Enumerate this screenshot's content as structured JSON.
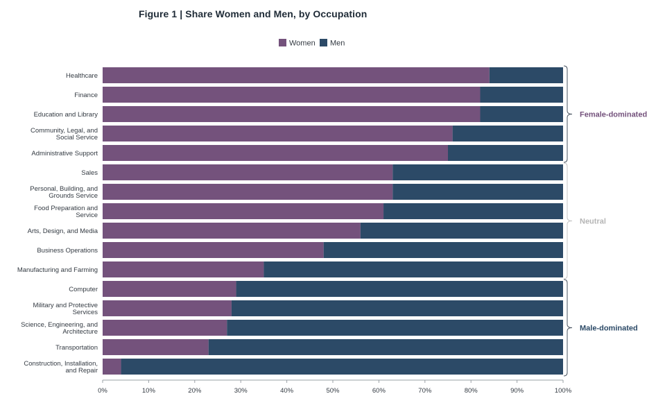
{
  "chart_data": {
    "type": "bar",
    "orientation": "horizontal",
    "stacked": true,
    "title": "Figure 1 | Share Women and Men, by Occupation",
    "categories": [
      "Healthcare",
      "Finance",
      "Education and Library",
      "Community, Legal, and|Social Service",
      "Administrative Support",
      "Sales",
      "Personal, Building, and|Grounds Service",
      "Food Preparation and|Service",
      "Arts, Design, and Media",
      "Business Operations",
      "Manufacturing and Farming",
      "Computer",
      "Military and Protective|Services",
      "Science, Engineering, and|Architecture",
      "Transportation",
      "Construction, Installation,|and Repair"
    ],
    "series": [
      {
        "name": "Women",
        "color": "#74527c",
        "values": [
          84,
          82,
          82,
          76,
          75,
          63,
          63,
          61,
          56,
          48,
          35,
          29,
          28,
          27,
          23,
          4
        ]
      },
      {
        "name": "Men",
        "color": "#2c4a67",
        "values": [
          16,
          18,
          18,
          24,
          25,
          37,
          37,
          39,
          44,
          52,
          65,
          71,
          72,
          73,
          77,
          96
        ]
      }
    ],
    "xlim": [
      0,
      100
    ],
    "xticks": [
      "0%",
      "10%",
      "20%",
      "30%",
      "40%",
      "50%",
      "60%",
      "70%",
      "80%",
      "90%",
      "100%"
    ],
    "legend_position": "top-center",
    "groups": [
      {
        "label": "Female-dominated",
        "from": 0,
        "to": 4,
        "color": "#74527c"
      },
      {
        "label": "Neutral",
        "from": 5,
        "to": 10,
        "color": "#b5b5b5"
      },
      {
        "label": "Male-dominated",
        "from": 11,
        "to": 15,
        "color": "#2c4a67"
      }
    ]
  }
}
